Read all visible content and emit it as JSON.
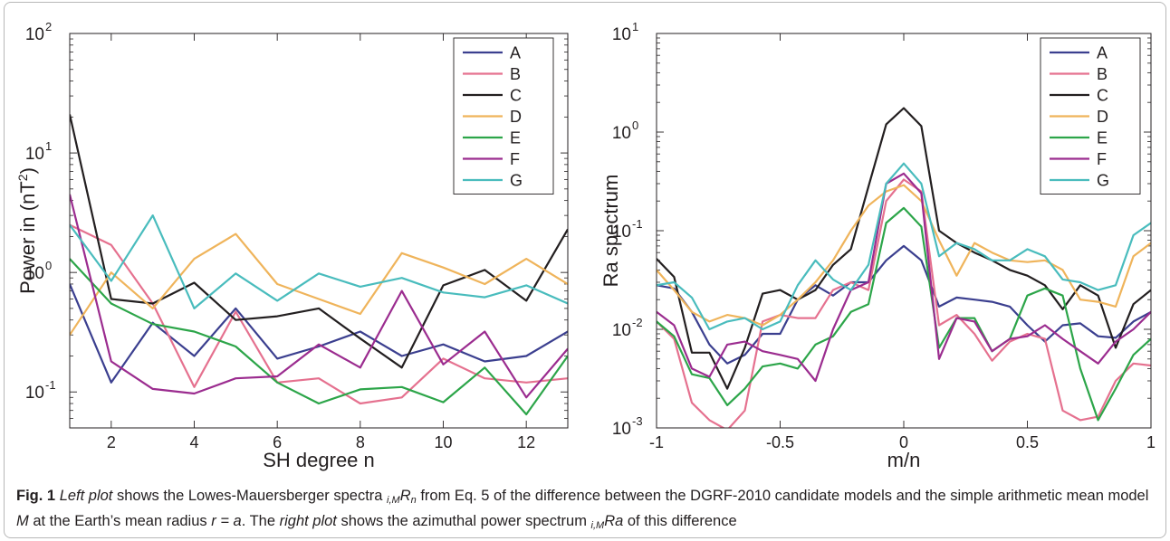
{
  "chart_data": [
    {
      "type": "line",
      "xlabel": "SH degree n",
      "ylabel": "Power in (nT",
      "ylabel_sup": "2",
      "ylabel_end": ")",
      "xlim": [
        1,
        13
      ],
      "ylim": [
        0.05,
        100
      ],
      "yscale": "log",
      "xticks": [
        2,
        4,
        6,
        8,
        10,
        12
      ],
      "xtick_labels": [
        "2",
        "4",
        "6",
        "8",
        "10",
        "12"
      ],
      "ytick_exponents": [
        -1,
        0,
        1,
        2
      ],
      "ytick_base": "10",
      "legend_position": "top-right",
      "x": [
        1,
        2,
        3,
        4,
        5,
        6,
        7,
        8,
        9,
        10,
        11,
        12,
        13
      ],
      "series": [
        {
          "name": "A",
          "color": "#3b3f8f",
          "values": [
            0.8,
            0.12,
            0.38,
            0.2,
            0.5,
            0.19,
            0.24,
            0.32,
            0.2,
            0.25,
            0.18,
            0.2,
            0.32
          ]
        },
        {
          "name": "B",
          "color": "#e5718f",
          "values": [
            2.5,
            1.7,
            0.55,
            0.11,
            0.47,
            0.12,
            0.13,
            0.08,
            0.09,
            0.19,
            0.13,
            0.12,
            0.13
          ]
        },
        {
          "name": "C",
          "color": "#231f20",
          "values": [
            21,
            0.6,
            0.55,
            0.82,
            0.4,
            0.43,
            0.5,
            0.28,
            0.16,
            0.78,
            1.05,
            0.58,
            2.3
          ]
        },
        {
          "name": "D",
          "color": "#efb45b",
          "values": [
            0.3,
            1.0,
            0.5,
            1.3,
            2.1,
            0.8,
            0.6,
            0.45,
            1.45,
            1.1,
            0.8,
            1.3,
            0.8
          ]
        },
        {
          "name": "E",
          "color": "#2ca549",
          "values": [
            1.3,
            0.55,
            0.37,
            0.32,
            0.24,
            0.12,
            0.08,
            0.105,
            0.11,
            0.082,
            0.16,
            0.065,
            0.2
          ]
        },
        {
          "name": "F",
          "color": "#9b2c8f",
          "values": [
            4.5,
            0.18,
            0.106,
            0.097,
            0.13,
            0.135,
            0.25,
            0.16,
            0.7,
            0.17,
            0.32,
            0.09,
            0.23
          ]
        },
        {
          "name": "G",
          "color": "#49bcbd",
          "values": [
            2.5,
            0.85,
            3.0,
            0.5,
            0.98,
            0.58,
            0.98,
            0.76,
            0.9,
            0.68,
            0.62,
            0.78,
            0.55
          ]
        }
      ]
    },
    {
      "type": "line",
      "xlabel": "m/n",
      "ylabel": "Ra spectrum",
      "xlim": [
        -1,
        1
      ],
      "ylim": [
        0.001,
        10
      ],
      "yscale": "log",
      "xticks": [
        -1,
        -0.5,
        0,
        0.5,
        1
      ],
      "xtick_labels": [
        "-1",
        "-0.5",
        "0",
        "0.5",
        "1"
      ],
      "ytick_exponents": [
        -3,
        -2,
        -1,
        0,
        1
      ],
      "ytick_base": "10",
      "legend_position": "top-right",
      "x": [
        -1,
        -0.929,
        -0.857,
        -0.786,
        -0.714,
        -0.643,
        -0.571,
        -0.5,
        -0.429,
        -0.357,
        -0.286,
        -0.214,
        -0.143,
        -0.071,
        0,
        0.071,
        0.143,
        0.214,
        0.286,
        0.357,
        0.429,
        0.5,
        0.571,
        0.643,
        0.714,
        0.786,
        0.857,
        0.929,
        1
      ],
      "series": [
        {
          "name": "A",
          "color": "#3b3f8f",
          "values": [
            0.028,
            0.026,
            0.015,
            0.007,
            0.0045,
            0.0055,
            0.009,
            0.009,
            0.02,
            0.028,
            0.022,
            0.03,
            0.03,
            0.05,
            0.07,
            0.05,
            0.017,
            0.021,
            0.02,
            0.019,
            0.017,
            0.011,
            0.0075,
            0.011,
            0.0115,
            0.0085,
            0.0082,
            0.012,
            0.015
          ]
        },
        {
          "name": "B",
          "color": "#e5718f",
          "values": [
            0.012,
            0.008,
            0.0018,
            0.0012,
            0.00095,
            0.0015,
            0.012,
            0.014,
            0.013,
            0.013,
            0.025,
            0.03,
            0.025,
            0.2,
            0.33,
            0.25,
            0.011,
            0.014,
            0.009,
            0.0048,
            0.0075,
            0.009,
            0.008,
            0.0015,
            0.0012,
            0.0013,
            0.003,
            0.0045,
            0.0043
          ]
        },
        {
          "name": "C",
          "color": "#231f20",
          "values": [
            0.052,
            0.034,
            0.0058,
            0.0058,
            0.0025,
            0.0065,
            0.023,
            0.025,
            0.02,
            0.025,
            0.045,
            0.065,
            0.28,
            1.2,
            1.75,
            1.15,
            0.1,
            0.075,
            0.06,
            0.05,
            0.04,
            0.035,
            0.028,
            0.016,
            0.028,
            0.022,
            0.0065,
            0.018,
            0.025
          ]
        },
        {
          "name": "D",
          "color": "#efb45b",
          "values": [
            0.04,
            0.025,
            0.015,
            0.012,
            0.014,
            0.013,
            0.011,
            0.014,
            0.02,
            0.03,
            0.05,
            0.1,
            0.18,
            0.25,
            0.29,
            0.2,
            0.08,
            0.035,
            0.075,
            0.06,
            0.05,
            0.048,
            0.05,
            0.04,
            0.02,
            0.019,
            0.017,
            0.055,
            0.075
          ]
        },
        {
          "name": "E",
          "color": "#2ca549",
          "values": [
            0.012,
            0.0085,
            0.0035,
            0.0032,
            0.0017,
            0.0025,
            0.0042,
            0.0045,
            0.004,
            0.007,
            0.0085,
            0.015,
            0.018,
            0.12,
            0.17,
            0.11,
            0.0065,
            0.013,
            0.013,
            0.006,
            0.008,
            0.022,
            0.026,
            0.022,
            0.004,
            0.0012,
            0.0025,
            0.0055,
            0.008
          ]
        },
        {
          "name": "F",
          "color": "#9b2c8f",
          "values": [
            0.015,
            0.011,
            0.004,
            0.0033,
            0.007,
            0.0075,
            0.006,
            0.0055,
            0.005,
            0.003,
            0.01,
            0.025,
            0.03,
            0.3,
            0.38,
            0.24,
            0.005,
            0.013,
            0.012,
            0.006,
            0.008,
            0.0085,
            0.011,
            0.008,
            0.006,
            0.0045,
            0.0075,
            0.01,
            0.015
          ]
        },
        {
          "name": "G",
          "color": "#49bcbd",
          "values": [
            0.028,
            0.03,
            0.021,
            0.01,
            0.012,
            0.013,
            0.01,
            0.012,
            0.028,
            0.05,
            0.032,
            0.025,
            0.045,
            0.3,
            0.48,
            0.3,
            0.055,
            0.075,
            0.065,
            0.05,
            0.05,
            0.065,
            0.055,
            0.032,
            0.03,
            0.025,
            0.028,
            0.09,
            0.12
          ]
        }
      ]
    }
  ],
  "caption": {
    "label": "Fig. 1",
    "left_plot": "Left plot",
    "part1": " shows the Lowes-Mauersberger spectra ",
    "sym_prefix": "i,M",
    "sym_main": "R",
    "sym_sub": "n",
    "part2": " from Eq. 5 of the difference between the DGRF-2010 candidate models and the simple arithmetic mean model ",
    "model_M": "M",
    "part3": " at the Earth’s mean radius ",
    "eq": "r = a",
    "part4": ". The ",
    "right_plot": "right plot",
    "part5": " shows the azimuthal power spectrum ",
    "sym2_prefix": "i,M",
    "sym2_main": "Ra",
    "part6": " of this difference"
  }
}
